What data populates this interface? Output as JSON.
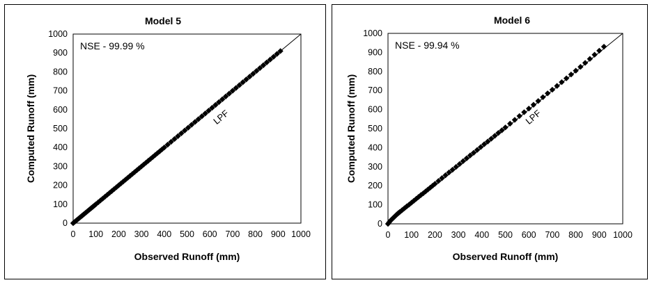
{
  "chart_data": [
    {
      "type": "scatter",
      "title": "Model 5",
      "xlabel": "Observed Runoff (mm)",
      "ylabel": "Computed Runoff (mm)",
      "xlim": [
        0,
        1000
      ],
      "ylim": [
        0,
        1000
      ],
      "xticks": [
        "0",
        "100",
        "200",
        "300",
        "400",
        "500",
        "600",
        "700",
        "800",
        "900",
        "1000"
      ],
      "yticks": [
        "0",
        "100",
        "200",
        "300",
        "400",
        "500",
        "600",
        "700",
        "800",
        "900",
        "1000"
      ],
      "annotation": "NSE - 99.99 %",
      "line_label": "LPF",
      "reference_line": [
        [
          0,
          0
        ],
        [
          1000,
          1000
        ]
      ],
      "series": [
        {
          "x": [
            0,
            5,
            10,
            15,
            20,
            25,
            30,
            35,
            40,
            45,
            50,
            55,
            60,
            65,
            70,
            75,
            80,
            85,
            90,
            95,
            100,
            110,
            120,
            130,
            140,
            150,
            160,
            170,
            180,
            190,
            200,
            210,
            220,
            230,
            240,
            250,
            260,
            270,
            280,
            290,
            300,
            310,
            320,
            330,
            340,
            350,
            360,
            370,
            380,
            390,
            400,
            415,
            430,
            445,
            460,
            475,
            490,
            505,
            520,
            535,
            550,
            565,
            580,
            595,
            610,
            625,
            640,
            655,
            670,
            685,
            700,
            715,
            730,
            745,
            760,
            775,
            790,
            805,
            820,
            835,
            850,
            865,
            880,
            895,
            910
          ],
          "y": [
            0,
            5,
            10,
            15,
            20,
            25,
            30,
            35,
            40,
            45,
            50,
            55,
            60,
            65,
            70,
            75,
            80,
            85,
            90,
            95,
            100,
            110,
            120,
            130,
            140,
            150,
            160,
            170,
            180,
            190,
            200,
            210,
            220,
            230,
            240,
            250,
            260,
            270,
            280,
            290,
            300,
            310,
            320,
            330,
            340,
            350,
            360,
            370,
            380,
            390,
            400,
            415,
            430,
            445,
            460,
            475,
            490,
            505,
            520,
            535,
            550,
            565,
            580,
            595,
            610,
            625,
            640,
            655,
            670,
            685,
            700,
            715,
            730,
            745,
            760,
            775,
            790,
            805,
            820,
            835,
            850,
            865,
            880,
            895,
            910
          ]
        }
      ]
    },
    {
      "type": "scatter",
      "title": "Model 6",
      "xlabel": "Observed Runoff (mm)",
      "ylabel": "Computed Runoff (mm)",
      "xlim": [
        0,
        1000
      ],
      "ylim": [
        0,
        1000
      ],
      "xticks": [
        "0",
        "100",
        "200",
        "300",
        "400",
        "500",
        "600",
        "700",
        "800",
        "900",
        "1000"
      ],
      "yticks": [
        "0",
        "100",
        "200",
        "300",
        "400",
        "500",
        "600",
        "700",
        "800",
        "900",
        "1000"
      ],
      "annotation": "NSE - 99.94 %",
      "line_label": "LPF",
      "reference_line": [
        [
          0,
          0
        ],
        [
          1000,
          1000
        ]
      ],
      "series": [
        {
          "x": [
            0,
            5,
            10,
            15,
            20,
            25,
            30,
            35,
            40,
            45,
            50,
            60,
            70,
            80,
            90,
            100,
            110,
            120,
            130,
            140,
            150,
            160,
            170,
            180,
            190,
            200,
            215,
            230,
            245,
            260,
            275,
            290,
            305,
            320,
            335,
            350,
            365,
            380,
            395,
            410,
            425,
            440,
            455,
            470,
            485,
            500,
            520,
            540,
            560,
            580,
            600,
            620,
            640,
            660,
            680,
            700,
            720,
            740,
            760,
            780,
            800,
            820,
            840,
            860,
            880,
            900,
            920
          ],
          "y": [
            0,
            8,
            16,
            22,
            28,
            34,
            40,
            46,
            52,
            57,
            62,
            72,
            82,
            92,
            101,
            111,
            121,
            131,
            141,
            151,
            160,
            170,
            180,
            190,
            200,
            210,
            225,
            240,
            255,
            270,
            284,
            299,
            314,
            329,
            344,
            359,
            373,
            388,
            403,
            418,
            432,
            447,
            462,
            477,
            491,
            506,
            526,
            546,
            566,
            586,
            605,
            625,
            645,
            665,
            685,
            704,
            724,
            744,
            764,
            784,
            804,
            824,
            845,
            866,
            888,
            909,
            930
          ]
        }
      ]
    }
  ]
}
